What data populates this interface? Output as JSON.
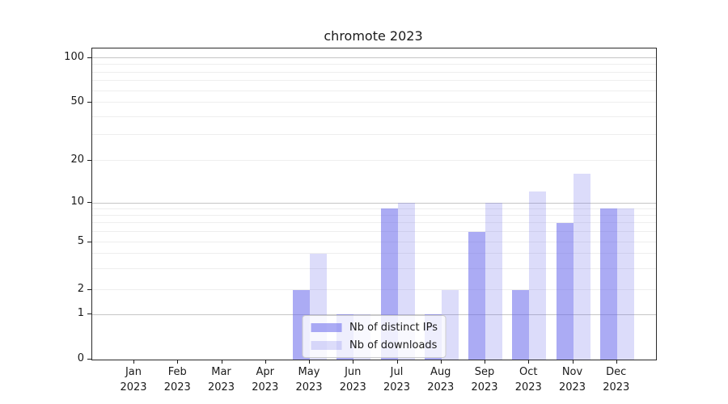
{
  "chart_data": {
    "type": "bar",
    "title": "chromote 2023",
    "year_label": "2023",
    "categories": [
      "Jan",
      "Feb",
      "Mar",
      "Apr",
      "May",
      "Jun",
      "Jul",
      "Aug",
      "Sep",
      "Oct",
      "Nov",
      "Dec"
    ],
    "x_tick_labels": [
      "Jan 2023",
      "Feb 2023",
      "Mar 2023",
      "Apr 2023",
      "May 2023",
      "Jun 2023",
      "Jul 2023",
      "Aug 2023",
      "Sep 2023",
      "Oct 2023",
      "Nov 2023",
      "Dec 2023"
    ],
    "series": [
      {
        "name": "Nb of distinct IPs",
        "color": "rgba(102,102,235,0.55)",
        "values": [
          0,
          0,
          0,
          0,
          2,
          1,
          9,
          1,
          6,
          2,
          7,
          9
        ]
      },
      {
        "name": "Nb of downloads",
        "color": "rgba(102,102,235,0.23)",
        "values": [
          0,
          0,
          0,
          0,
          4,
          1,
          10,
          2,
          10,
          12,
          16,
          9
        ]
      }
    ],
    "xlabel": "",
    "ylabel": "",
    "yticks": [
      0,
      1,
      2,
      5,
      10,
      20,
      50,
      100
    ],
    "ylim": [
      0,
      116
    ],
    "yscale": "log-like (linear segment between 0 and 1)",
    "grid": true,
    "grid_major_color": "#c6c6c6",
    "grid_minor_color": "#eeeeee",
    "axis_color": "#2a2a2a",
    "text_color": "#1a1a1a",
    "legend": {
      "position": "lower center"
    }
  }
}
